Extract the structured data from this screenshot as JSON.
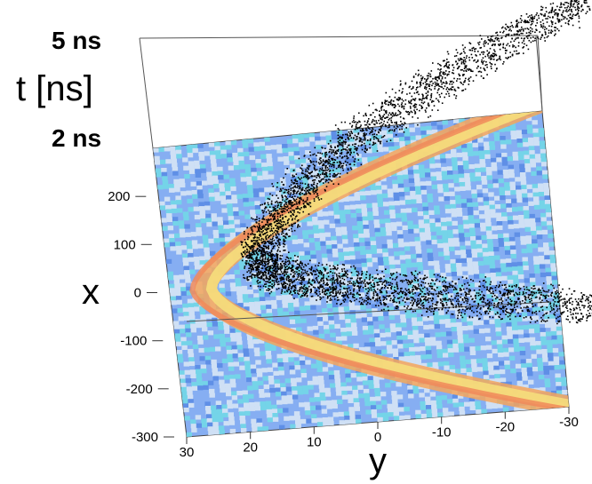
{
  "chart_data": {
    "type": "scatter",
    "zlabel": "t [ns]",
    "xlabel": "x",
    "ylabel": "y",
    "z_tick_labels": [
      "5 ns",
      "2 ns"
    ],
    "x_ticks": [
      200,
      100,
      0,
      -100,
      -200,
      -300
    ],
    "x_tick_labels": [
      "200",
      "100",
      "0",
      "-100",
      "-200",
      "-300"
    ],
    "y_ticks": [
      30,
      20,
      10,
      0,
      -10,
      -20,
      -30
    ],
    "y_tick_labels": [
      "30",
      "20",
      "10",
      "0",
      "-10",
      "-20",
      "-30"
    ],
    "x_range": [
      -300,
      300
    ],
    "y_range": [
      30,
      -30
    ],
    "z_range": [
      2,
      5
    ],
    "grid": false,
    "colors": {
      "background_hit": "#7fa9f0",
      "noise_light": "#cfe0f5",
      "noise_cyan": "#74d4e8",
      "ring_orange": "#f4a45c",
      "ring_yellow": "#f7e07c",
      "points": "#000000"
    }
  }
}
